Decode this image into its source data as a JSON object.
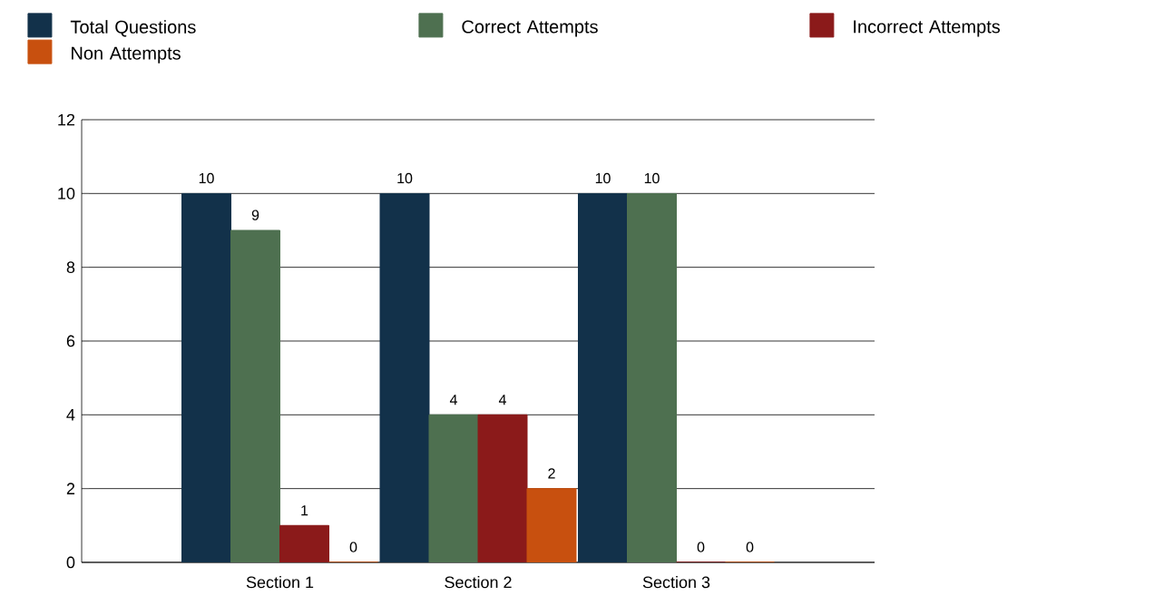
{
  "chart_data": {
    "type": "bar",
    "categories": [
      "Section 1",
      "Section 2",
      "Section 3"
    ],
    "series": [
      {
        "name": "Total Questions",
        "color": "#12314a",
        "values": [
          10,
          10,
          10
        ]
      },
      {
        "name": "Correct Attempts",
        "color": "#4e7050",
        "values": [
          9,
          4,
          10
        ]
      },
      {
        "name": "Incorrect Attempts",
        "color": "#8b1a1a",
        "values": [
          1,
          4,
          0
        ]
      },
      {
        "name": "Non Attempts",
        "color": "#c8500f",
        "values": [
          0,
          2,
          0
        ]
      }
    ],
    "ylim": [
      0,
      12
    ],
    "yticks": [
      0,
      2,
      4,
      6,
      8,
      10,
      12
    ],
    "grid": "y",
    "legend": "top",
    "data_labels": true
  }
}
